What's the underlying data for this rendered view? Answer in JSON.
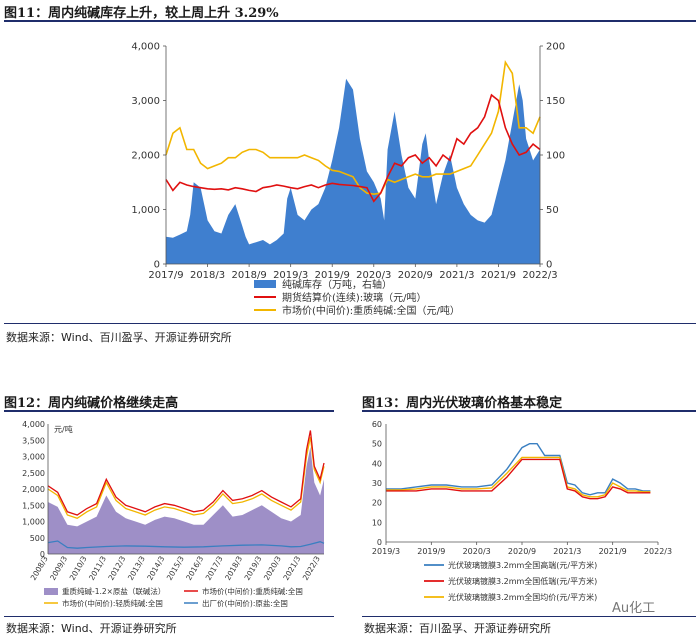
{
  "fig11": {
    "title": "图11：周内纯碱库存上升，较上周上升 3.29%",
    "source": "数据来源：Wind、百川盈孚、开源证券研究所",
    "legend": [
      "纯碱库存（万吨，右轴）",
      "期货结算价(连续):玻璃（元/吨）",
      "市场价(中间价):重质纯碱:全国（元/吨）"
    ],
    "colors": {
      "area": "#3f7fcf",
      "red": "#e01010",
      "yellow": "#f2b600"
    }
  },
  "fig12": {
    "title": "图12：周内纯碱价格继续走高",
    "source": "数据来源：Wind、开源证券研究所",
    "unit": "元/吨",
    "legend": [
      "重质纯碱-1.2×原盐（联碱法）",
      "市场价(中间价):重质纯碱:全国",
      "市场价(中间价):轻质纯碱:全国",
      "出厂价(中间价):原盐:全国"
    ],
    "colors": {
      "area": "#9e8fc7",
      "red": "#e01010",
      "yellow": "#f2b600",
      "blue": "#3a7fc1"
    }
  },
  "fig13": {
    "title": "图13：周内光伏玻璃价格基本稳定",
    "source": "数据来源：百川盈孚、开源证券研究所",
    "legend": [
      "光伏玻璃镀膜3.2mm全国高端(元/平方米)",
      "光伏玻璃镀膜3.2mm全国低端(元/平方米)",
      "光伏玻璃镀膜3.2mm全国均价(元/平方米)"
    ],
    "colors": {
      "blue": "#3a7fc1",
      "red": "#e01010",
      "yellow": "#f2b600"
    }
  },
  "watermark": "Au化工",
  "chart_data": [
    {
      "id": "fig11",
      "type": "area+line",
      "x_ticks": [
        "2017/9",
        "2018/3",
        "2018/9",
        "2019/3",
        "2019/9",
        "2020/3",
        "2020/9",
        "2021/3",
        "2021/9",
        "2022/3"
      ],
      "x_range": [
        0,
        54
      ],
      "y_left": {
        "ticks": [
          "0",
          "1,000",
          "2,000",
          "3,000",
          "4,000"
        ],
        "range": [
          0,
          4000
        ]
      },
      "y_right": {
        "ticks": [
          "0",
          "50",
          "100",
          "150",
          "200"
        ],
        "range": [
          0,
          200
        ]
      },
      "series": [
        {
          "name": "纯碱库存（万吨，右轴）",
          "axis": "right",
          "kind": "area",
          "x": [
            0,
            1,
            2,
            3,
            3.5,
            4,
            5,
            6,
            7,
            8,
            9,
            10,
            11,
            11.5,
            12,
            13,
            14,
            15,
            16,
            17,
            17.5,
            18,
            19,
            20,
            21,
            22,
            23,
            24,
            25,
            26,
            27,
            28,
            29,
            30,
            31,
            31.5,
            32,
            33,
            34,
            35,
            36,
            37,
            37.5,
            38,
            39,
            40,
            41,
            42,
            43,
            44,
            45,
            46,
            47,
            48,
            49,
            50,
            51,
            51.5,
            52,
            53,
            54
          ],
          "values": [
            25,
            24,
            27,
            30,
            45,
            75,
            70,
            40,
            30,
            28,
            45,
            55,
            35,
            25,
            18,
            20,
            22,
            18,
            22,
            28,
            60,
            70,
            45,
            40,
            50,
            55,
            70,
            95,
            125,
            170,
            160,
            115,
            85,
            75,
            60,
            40,
            105,
            140,
            100,
            70,
            60,
            110,
            120,
            95,
            55,
            82,
            100,
            70,
            55,
            45,
            40,
            38,
            45,
            70,
            95,
            130,
            165,
            150,
            115,
            95,
            105
          ]
        },
        {
          "name": "期货结算价(连续):玻璃（元/吨）",
          "axis": "left",
          "kind": "line",
          "x": [
            0,
            1,
            2,
            3,
            4,
            5,
            6,
            7,
            8,
            9,
            10,
            11,
            12,
            13,
            14,
            15,
            16,
            17,
            18,
            19,
            20,
            21,
            22,
            23,
            24,
            25,
            26,
            27,
            28,
            29,
            30,
            31,
            32,
            33,
            34,
            35,
            36,
            37,
            38,
            39,
            40,
            41,
            42,
            43,
            44,
            45,
            46,
            47,
            48,
            49,
            50,
            51,
            52,
            53,
            54
          ],
          "values": [
            1550,
            1350,
            1500,
            1450,
            1420,
            1400,
            1380,
            1370,
            1380,
            1360,
            1400,
            1380,
            1350,
            1330,
            1400,
            1420,
            1450,
            1430,
            1400,
            1380,
            1420,
            1450,
            1400,
            1450,
            1480,
            1460,
            1450,
            1440,
            1420,
            1400,
            1150,
            1300,
            1600,
            1850,
            1800,
            1950,
            2000,
            1850,
            1950,
            1800,
            2000,
            1900,
            2300,
            2200,
            2400,
            2500,
            2700,
            3100,
            3000,
            2500,
            2200,
            2000,
            2050,
            2200,
            2100
          ]
        },
        {
          "name": "市场价(中间价):重质纯碱:全国（元/吨）",
          "axis": "left",
          "kind": "line",
          "x": [
            0,
            1,
            2,
            3,
            4,
            5,
            6,
            7,
            8,
            9,
            10,
            11,
            12,
            13,
            14,
            15,
            16,
            17,
            18,
            19,
            20,
            21,
            22,
            23,
            24,
            25,
            26,
            27,
            28,
            29,
            30,
            31,
            32,
            33,
            34,
            35,
            36,
            37,
            38,
            39,
            40,
            41,
            42,
            43,
            44,
            45,
            46,
            47,
            48,
            49,
            50,
            51,
            52,
            53,
            54
          ],
          "values": [
            2000,
            2400,
            2500,
            2100,
            2100,
            1850,
            1750,
            1800,
            1850,
            1950,
            1950,
            2050,
            2100,
            2100,
            2050,
            1950,
            1950,
            1950,
            1950,
            1950,
            2000,
            1950,
            1900,
            1800,
            1720,
            1700,
            1650,
            1600,
            1400,
            1300,
            1280,
            1300,
            1550,
            1500,
            1550,
            1600,
            1650,
            1600,
            1600,
            1650,
            1650,
            1650,
            1700,
            1750,
            1800,
            2000,
            2200,
            2400,
            2800,
            3700,
            3500,
            2500,
            2500,
            2400,
            2700
          ]
        }
      ]
    },
    {
      "id": "fig12",
      "type": "area+line",
      "x_ticks": [
        "2008/3",
        "2009/3",
        "2010/3",
        "2011/3",
        "2012/3",
        "2013/3",
        "2014/3",
        "2015/3",
        "2016/3",
        "2017/3",
        "2018/3",
        "2019/3",
        "2020/3",
        "2021/3",
        "2022/3"
      ],
      "x_range": [
        0,
        14.2
      ],
      "y_left": {
        "ticks": [
          "0",
          "500",
          "1,000",
          "1,500",
          "2,000",
          "2,500",
          "3,000",
          "3,500",
          "4,000"
        ],
        "range": [
          0,
          4000
        ]
      },
      "series": [
        {
          "name": "重质纯碱-1.2×原盐（联碱法）",
          "kind": "area",
          "x": [
            0,
            0.5,
            1,
            1.5,
            2,
            2.5,
            3,
            3.5,
            4,
            4.5,
            5,
            5.5,
            6,
            6.5,
            7,
            7.5,
            8,
            8.5,
            9,
            9.5,
            10,
            10.5,
            11,
            11.5,
            12,
            12.5,
            13,
            13.3,
            13.5,
            13.7,
            14,
            14.2
          ],
          "values": [
            1600,
            1450,
            900,
            850,
            1000,
            1150,
            1800,
            1300,
            1100,
            1000,
            900,
            1050,
            1150,
            1100,
            1000,
            900,
            900,
            1200,
            1500,
            1150,
            1200,
            1350,
            1500,
            1300,
            1100,
            1000,
            1200,
            2700,
            3300,
            2200,
            1800,
            2300
          ]
        },
        {
          "name": "市场价(中间价):重质纯碱:全国",
          "kind": "line",
          "x": [
            0,
            0.5,
            1,
            1.5,
            2,
            2.5,
            3,
            3.5,
            4,
            4.5,
            5,
            5.5,
            6,
            6.5,
            7,
            7.5,
            8,
            8.5,
            9,
            9.5,
            10,
            10.5,
            11,
            11.5,
            12,
            12.5,
            13,
            13.3,
            13.5,
            13.7,
            14,
            14.2
          ],
          "values": [
            2100,
            1900,
            1300,
            1200,
            1400,
            1550,
            2300,
            1750,
            1500,
            1400,
            1300,
            1450,
            1550,
            1500,
            1400,
            1300,
            1350,
            1600,
            1950,
            1650,
            1700,
            1800,
            1950,
            1750,
            1600,
            1450,
            1700,
            3200,
            3800,
            2700,
            2300,
            2800
          ]
        },
        {
          "name": "市场价(中间价):轻质纯碱:全国",
          "kind": "line",
          "x": [
            0,
            0.5,
            1,
            1.5,
            2,
            2.5,
            3,
            3.5,
            4,
            4.5,
            5,
            5.5,
            6,
            6.5,
            7,
            7.5,
            8,
            8.5,
            9,
            9.5,
            10,
            10.5,
            11,
            11.5,
            12,
            12.5,
            13,
            13.3,
            13.5,
            13.7,
            14,
            14.2
          ],
          "values": [
            2000,
            1800,
            1200,
            1100,
            1300,
            1450,
            2200,
            1650,
            1400,
            1300,
            1200,
            1350,
            1450,
            1400,
            1300,
            1200,
            1250,
            1500,
            1850,
            1550,
            1600,
            1700,
            1850,
            1650,
            1500,
            1350,
            1600,
            3000,
            3600,
            2600,
            2200,
            2700
          ]
        },
        {
          "name": "出厂价(中间价):原盐:全国",
          "kind": "line",
          "x": [
            0,
            0.5,
            1,
            1.5,
            2,
            3,
            4,
            5,
            6,
            7,
            8,
            9,
            10,
            11,
            12,
            12.5,
            13,
            13.5,
            14,
            14.2
          ],
          "values": [
            350,
            400,
            200,
            180,
            200,
            230,
            250,
            240,
            220,
            210,
            220,
            250,
            270,
            280,
            250,
            220,
            230,
            300,
            380,
            330
          ]
        }
      ]
    },
    {
      "id": "fig13",
      "type": "line",
      "x_ticks": [
        "2019/3",
        "2019/9",
        "2020/3",
        "2020/9",
        "2021/3",
        "2021/9",
        "2022/3"
      ],
      "x_range": [
        0,
        36
      ],
      "y_left": {
        "ticks": [
          "0",
          "10",
          "20",
          "30",
          "40",
          "50",
          "60"
        ],
        "range": [
          0,
          60
        ]
      },
      "series": [
        {
          "name": "光伏玻璃镀膜3.2mm全国高端(元/平方米)",
          "kind": "line",
          "x": [
            0,
            2,
            4,
            6,
            8,
            10,
            12,
            14,
            16,
            18,
            19,
            20,
            21,
            22,
            23,
            24,
            25,
            26,
            27,
            28,
            29,
            30,
            31,
            32,
            33,
            34,
            35
          ],
          "values": [
            27,
            27,
            28,
            29,
            29,
            28,
            28,
            29,
            37,
            48,
            50,
            50,
            44,
            44,
            44,
            30,
            29,
            25,
            24,
            25,
            25,
            32,
            30,
            27,
            27,
            26,
            26
          ]
        },
        {
          "name": "光伏玻璃镀膜3.2mm全国低端(元/平方米)",
          "kind": "line",
          "x": [
            0,
            2,
            4,
            6,
            8,
            10,
            12,
            14,
            16,
            18,
            19,
            20,
            21,
            22,
            23,
            24,
            25,
            26,
            27,
            28,
            29,
            30,
            31,
            32,
            33,
            34,
            35
          ],
          "values": [
            26,
            26,
            26,
            27,
            27,
            26,
            26,
            26,
            33,
            42,
            42,
            42,
            42,
            42,
            42,
            27,
            26,
            23,
            22,
            22,
            23,
            28,
            27,
            25,
            25,
            25,
            25
          ]
        },
        {
          "name": "光伏玻璃镀膜3.2mm全国均价(元/平方米)",
          "kind": "line",
          "x": [
            0,
            2,
            4,
            6,
            8,
            10,
            12,
            14,
            16,
            18,
            19,
            20,
            21,
            22,
            23,
            24,
            25,
            26,
            27,
            28,
            29,
            30,
            31,
            32,
            33,
            34,
            35
          ],
          "values": [
            26.5,
            26.5,
            27,
            28,
            28,
            27,
            27,
            27.5,
            35,
            43,
            43,
            43,
            43,
            43,
            43,
            28,
            27,
            24,
            23,
            23,
            24,
            30,
            28,
            26,
            26,
            25.5,
            25.5
          ]
        }
      ]
    }
  ]
}
